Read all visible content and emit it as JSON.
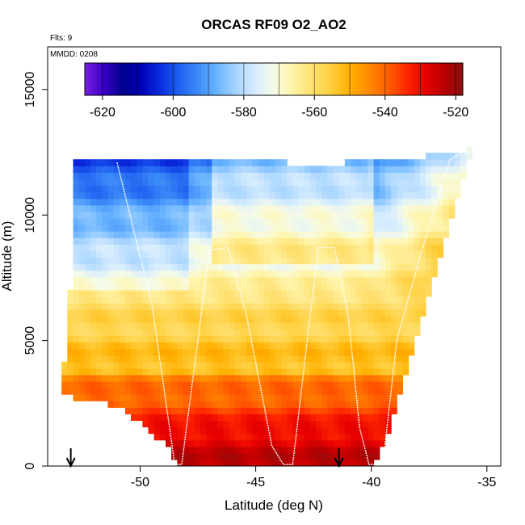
{
  "chart_data": {
    "type": "heatmap",
    "title": "ORCAS RF09 O2_AO2",
    "flights_label": "Flts: 9",
    "date_label": "MMDD: 0208",
    "xlabel": "Latitude (deg N)",
    "ylabel": "Altitude (m)",
    "xlim": [
      -54.0,
      -34.4
    ],
    "ylim": [
      0,
      16700
    ],
    "x_ticks": [
      -50,
      -45,
      -40,
      -35
    ],
    "x_tick_labels": [
      "-50",
      "-45",
      "-40",
      "-35"
    ],
    "y_ticks": [
      0,
      5000,
      10000,
      15000
    ],
    "y_tick_labels": [
      "0",
      "5000",
      "10000",
      "15000"
    ],
    "colorbar": {
      "min": -625,
      "max": -518,
      "ticks": [
        -620,
        -600,
        -580,
        -560,
        -540,
        -520
      ],
      "tick_labels": [
        "-620",
        "-600",
        "-580",
        "-560",
        "-540",
        "-520"
      ],
      "palette": [
        "#7a1fe0",
        "#3a00c8",
        "#00008c",
        "#0000b8",
        "#0a2ee0",
        "#2060f0",
        "#3c8cf8",
        "#6ab4ff",
        "#a6d4ff",
        "#d6ecff",
        "#f6fbe6",
        "#fff4a8",
        "#ffe070",
        "#ffd040",
        "#ffb000",
        "#ff8c00",
        "#ff6000",
        "#ff2a00",
        "#e80000",
        "#b80000",
        "#8c1010"
      ]
    },
    "arrows_at_latitude": [
      -53.0,
      -41.4
    ],
    "track_color": "#ffffff",
    "field_description_layers": [
      {
        "altitude_range_m": [
          0,
          1500
        ],
        "value_range": [
          -530,
          -522
        ]
      },
      {
        "altitude_range_m": [
          1500,
          3500
        ],
        "value_range": [
          -545,
          -535
        ]
      },
      {
        "altitude_range_m": [
          3500,
          7000
        ],
        "value_range": [
          -565,
          -550
        ]
      },
      {
        "altitude_range_m": [
          7000,
          10500
        ],
        "value_range": [
          -585,
          -555
        ]
      },
      {
        "altitude_range_m": [
          10500,
          12500
        ],
        "value_range": [
          -600,
          -585
        ]
      }
    ],
    "flight_track": {
      "lat": [
        -51.0,
        -51.0,
        -49.5,
        -48.8,
        -48.5,
        -48.2,
        -47.0,
        -46.2,
        -45.4,
        -44.3,
        -43.8,
        -43.4,
        -42.3,
        -41.6,
        -41.0,
        -40.5,
        -40.1,
        -39.5,
        -38.9,
        -38.0,
        -37.2,
        -36.6,
        -35.9
      ],
      "alt": [
        12100,
        12100,
        6500,
        2000,
        60,
        60,
        8600,
        8700,
        6000,
        800,
        60,
        60,
        8700,
        8700,
        6000,
        1500,
        60,
        60,
        5000,
        8000,
        10500,
        12200,
        12600
      ]
    }
  }
}
